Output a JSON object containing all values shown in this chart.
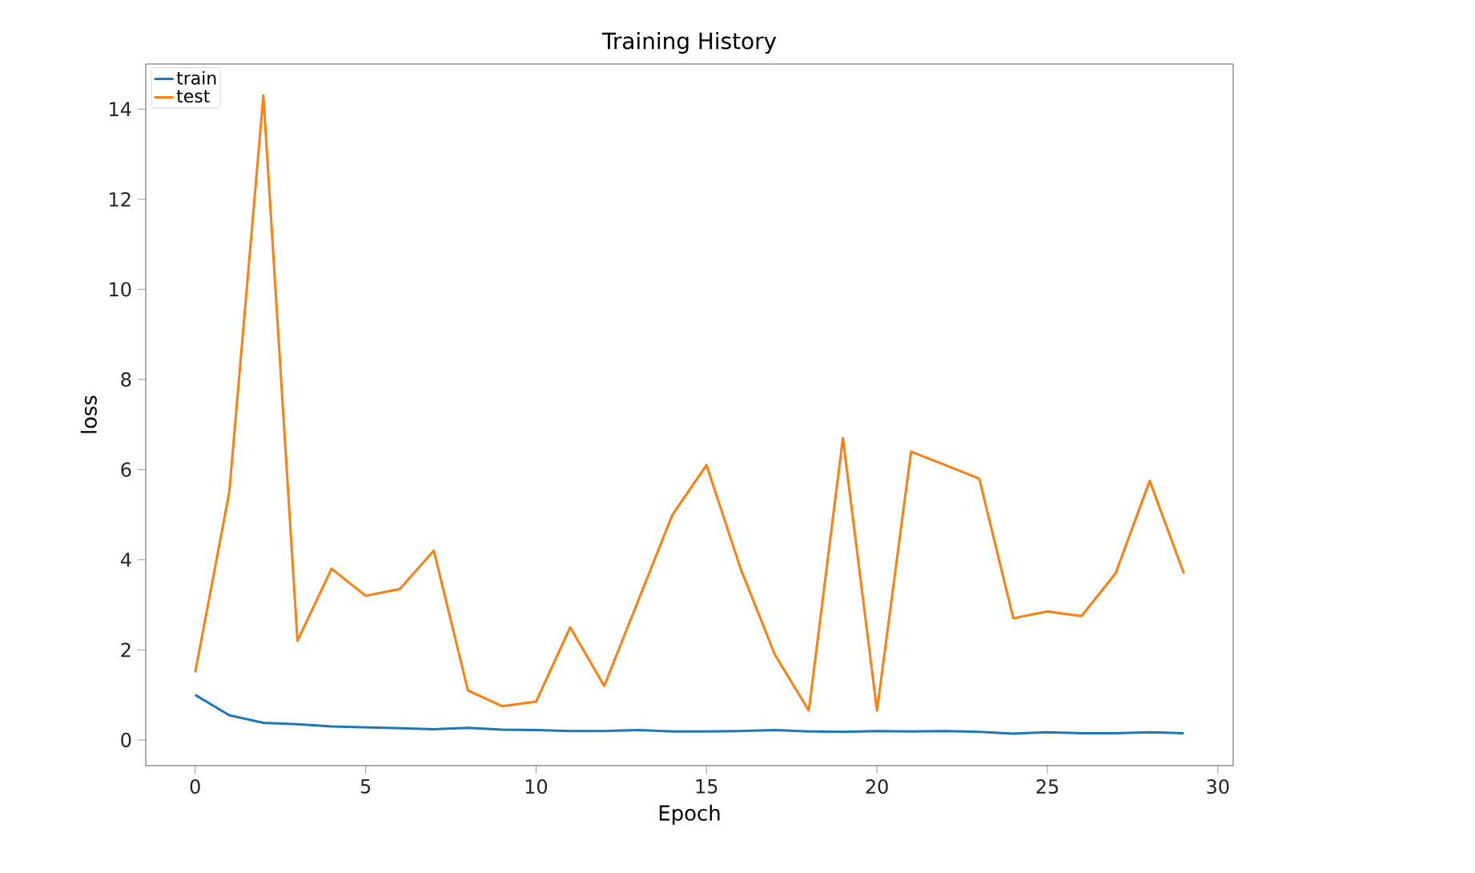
{
  "chart_data": {
    "type": "line",
    "title": "Training History",
    "xlabel": "Epoch",
    "ylabel": "loss",
    "x": [
      0,
      1,
      2,
      3,
      4,
      5,
      6,
      7,
      8,
      9,
      10,
      11,
      12,
      13,
      14,
      15,
      16,
      17,
      18,
      19,
      20,
      21,
      22,
      23,
      24,
      25,
      26,
      27,
      28,
      29
    ],
    "series": [
      {
        "name": "train",
        "color": "#1f77b4",
        "values": [
          1.0,
          0.55,
          0.38,
          0.35,
          0.3,
          0.28,
          0.26,
          0.24,
          0.27,
          0.23,
          0.22,
          0.2,
          0.2,
          0.22,
          0.19,
          0.19,
          0.2,
          0.22,
          0.19,
          0.18,
          0.2,
          0.19,
          0.2,
          0.18,
          0.14,
          0.17,
          0.15,
          0.15,
          0.17,
          0.15
        ]
      },
      {
        "name": "test",
        "color": "#ff7f0e",
        "values": [
          1.5,
          5.5,
          14.3,
          2.2,
          3.8,
          3.2,
          3.35,
          4.2,
          1.1,
          0.75,
          0.85,
          2.5,
          1.2,
          3.1,
          5.0,
          6.1,
          3.8,
          1.9,
          0.65,
          6.7,
          0.65,
          6.4,
          6.1,
          5.8,
          2.7,
          2.85,
          2.75,
          3.7,
          5.75,
          3.7
        ]
      }
    ],
    "xlim": [
      -1.45,
      30.45
    ],
    "ylim": [
      -0.57,
      15.0
    ],
    "xticks": [
      0,
      5,
      10,
      15,
      20,
      25,
      30
    ],
    "yticks": [
      0,
      2,
      4,
      6,
      8,
      10,
      12,
      14
    ],
    "legend": "top left",
    "grid": false,
    "marker": "none",
    "line_style": "solid"
  }
}
